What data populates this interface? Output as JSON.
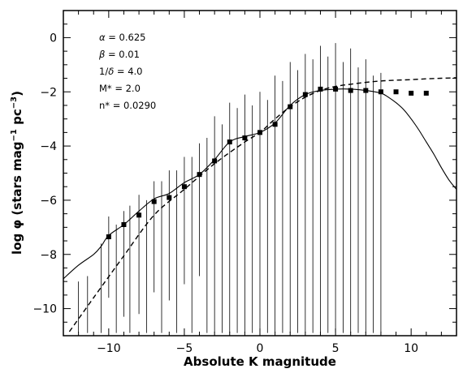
{
  "chart_data": {
    "type": "line",
    "xlabel": "Absolute K magnitude",
    "ylabel": "log φ (stars mag⁻¹ pc⁻³)",
    "ylabel_parts": {
      "prefix": "log φ (stars mag",
      "exp1": "−1",
      "mid": " pc",
      "exp2": "−3",
      "suffix": ")"
    },
    "xlim": [
      -13,
      13
    ],
    "ylim": [
      -11,
      1
    ],
    "xticks": [
      -10,
      -5,
      0,
      5,
      10
    ],
    "yticks": [
      0,
      -2,
      -4,
      -6,
      -8,
      -10
    ],
    "xtick_labels": [
      "−10",
      "−5",
      "0",
      "5",
      "10"
    ],
    "ytick_labels": [
      "0",
      "−2",
      "−4",
      "−6",
      "−8",
      "−10"
    ],
    "grid": false,
    "annotations": [
      {
        "greek": "α",
        "rest": " = 0.625"
      },
      {
        "greek": "β",
        "rest": " = 0.01"
      },
      {
        "pre": "1/",
        "greek": "δ",
        "rest": " = 4.0"
      },
      {
        "pre": "M* = 2.0"
      },
      {
        "pre": "n* = 0.0290"
      }
    ],
    "series": [
      {
        "kind": "points",
        "x": [
          -10,
          -9,
          -8,
          -7,
          -6,
          -5,
          -4,
          -3,
          -2,
          -1,
          0,
          1,
          2,
          3,
          4,
          5,
          6,
          7,
          8,
          9,
          10,
          11
        ],
        "y": [
          -7.35,
          -6.9,
          -6.55,
          -6.05,
          -5.9,
          -5.5,
          -5.05,
          -4.55,
          -3.85,
          -3.7,
          -3.5,
          -3.2,
          -2.55,
          -2.1,
          -1.9,
          -1.9,
          -1.95,
          -1.95,
          -2.0,
          -2.0,
          -2.05,
          -2.05
        ]
      },
      {
        "kind": "dashed",
        "x": [
          -12.6,
          -11,
          -9,
          -7,
          -5,
          -3,
          -1,
          0,
          1,
          2,
          3,
          4,
          5,
          6,
          7,
          8,
          9,
          10,
          11,
          12,
          13
        ],
        "y": [
          -10.85,
          -9.6,
          -8.05,
          -6.55,
          -5.6,
          -4.65,
          -3.85,
          -3.5,
          -3.0,
          -2.55,
          -2.2,
          -1.95,
          -1.8,
          -1.72,
          -1.65,
          -1.6,
          -1.57,
          -1.55,
          -1.52,
          -1.5,
          -1.48
        ]
      },
      {
        "kind": "solid",
        "x": [
          -13,
          -12,
          -11,
          -10.5,
          -10,
          -9,
          -8,
          -7,
          -6,
          -5,
          -4,
          -3,
          -2,
          -1,
          0,
          1,
          2,
          3,
          4,
          5,
          6,
          7,
          8,
          8.5,
          9,
          9.5,
          10,
          10.5,
          11,
          11.5,
          12,
          12.5,
          13
        ],
        "y": [
          -8.9,
          -8.4,
          -8.0,
          -7.7,
          -7.3,
          -6.9,
          -6.4,
          -5.95,
          -5.75,
          -5.35,
          -5.05,
          -4.5,
          -3.85,
          -3.65,
          -3.5,
          -3.15,
          -2.5,
          -2.1,
          -1.95,
          -1.9,
          -1.9,
          -1.95,
          -2.05,
          -2.2,
          -2.4,
          -2.65,
          -3.0,
          -3.4,
          -3.85,
          -4.3,
          -4.8,
          -5.25,
          -5.6
        ]
      },
      {
        "kind": "error_bars",
        "bars": [
          [
            -12,
            -10.9,
            -9.0
          ],
          [
            -11.4,
            -10.9,
            -8.8
          ],
          [
            -10.5,
            -10.9,
            -7.6
          ],
          [
            -10,
            -9.6,
            -6.6
          ],
          [
            -9.5,
            -10.9,
            -6.9
          ],
          [
            -9,
            -10.3,
            -6.4
          ],
          [
            -8.6,
            -10.9,
            -6.2
          ],
          [
            -8,
            -10.2,
            -5.8
          ],
          [
            -7.5,
            -10.9,
            -6.0
          ],
          [
            -7,
            -9.4,
            -5.3
          ],
          [
            -6.5,
            -10.9,
            -5.3
          ],
          [
            -6,
            -9.7,
            -4.9
          ],
          [
            -5.5,
            -10.9,
            -4.9
          ],
          [
            -5,
            -9.1,
            -4.4
          ],
          [
            -4.5,
            -10.9,
            -4.4
          ],
          [
            -4,
            -8.8,
            -3.9
          ],
          [
            -3.5,
            -10.9,
            -3.7
          ],
          [
            -3,
            -10.9,
            -2.9
          ],
          [
            -2.5,
            -10.9,
            -3.2
          ],
          [
            -2,
            -10.9,
            -2.4
          ],
          [
            -1.5,
            -10.9,
            -2.6
          ],
          [
            -1,
            -10.9,
            -2.1
          ],
          [
            -0.5,
            -10.9,
            -2.5
          ],
          [
            0,
            -10.9,
            -2.0
          ],
          [
            0.5,
            -10.9,
            -2.3
          ],
          [
            1,
            -10.9,
            -1.4
          ],
          [
            1.5,
            -10.9,
            -1.6
          ],
          [
            2,
            -10.9,
            -0.9
          ],
          [
            2.5,
            -10.9,
            -1.2
          ],
          [
            3,
            -10.9,
            -0.6
          ],
          [
            3.5,
            -10.9,
            -0.8
          ],
          [
            4,
            -10.9,
            -0.3
          ],
          [
            4.5,
            -10.9,
            -0.7
          ],
          [
            5,
            -10.9,
            -0.2
          ],
          [
            5.5,
            -10.9,
            -0.9
          ],
          [
            6,
            -10.9,
            -0.4
          ],
          [
            6.5,
            -10.9,
            -1.1
          ],
          [
            7,
            -10.9,
            -0.8
          ],
          [
            7.5,
            -10.9,
            -1.4
          ],
          [
            8,
            -10.9,
            -1.3
          ]
        ]
      }
    ]
  }
}
